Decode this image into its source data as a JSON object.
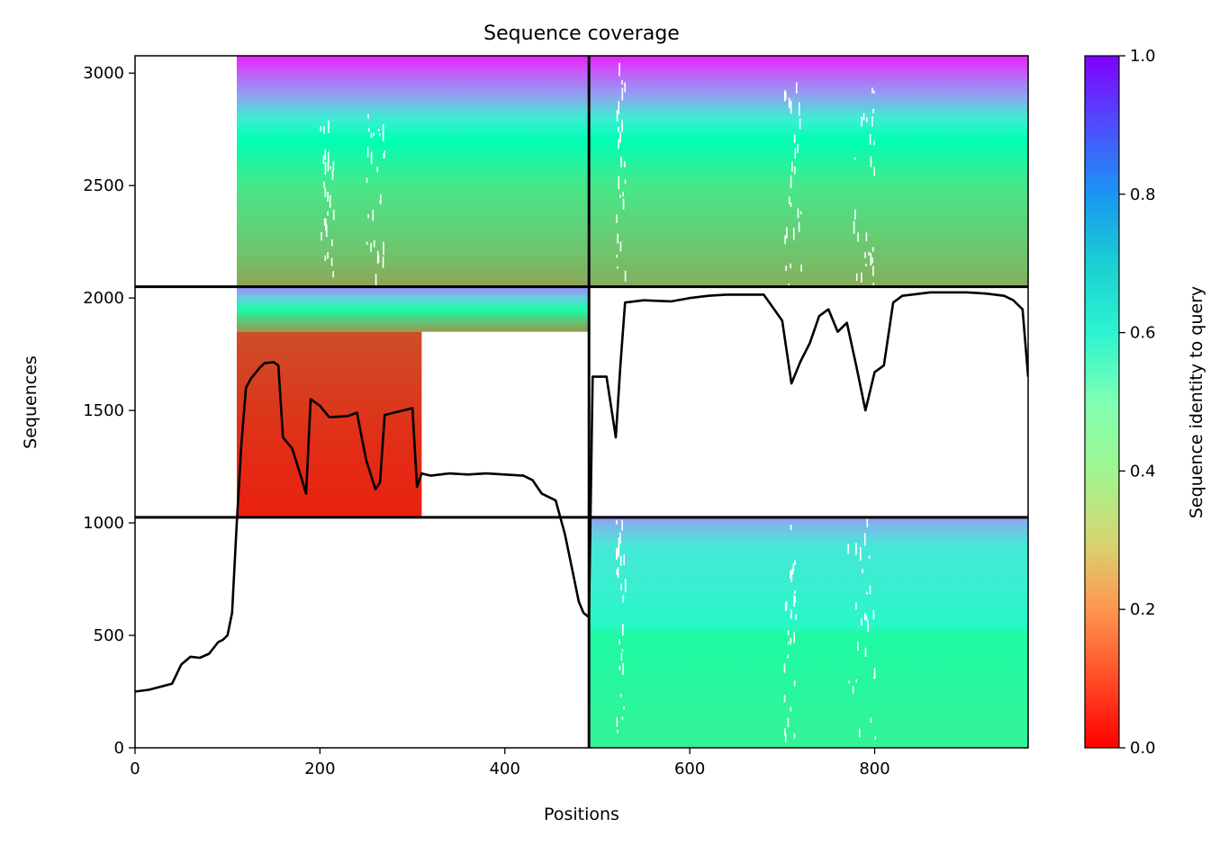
{
  "chart_data": {
    "type": "heatmap",
    "title": "Sequence coverage",
    "xlabel": "Positions",
    "ylabel": "Sequences",
    "xlim": [
      0,
      966
    ],
    "ylim": [
      0,
      3077
    ],
    "x_ticks": [
      "0",
      "200",
      "400",
      "600",
      "800"
    ],
    "x_tick_values": [
      0,
      200,
      400,
      600,
      800
    ],
    "y_ticks": [
      "0",
      "500",
      "1000",
      "1500",
      "2000",
      "2500",
      "3000"
    ],
    "y_tick_values": [
      0,
      500,
      1000,
      1500,
      2000,
      2500,
      3000
    ],
    "colorbar": {
      "label": "Sequence identity to query",
      "colormap": "rainbow_r",
      "range": [
        0.0,
        1.0
      ],
      "ticks": [
        "0.0",
        "0.2",
        "0.4",
        "0.6",
        "0.8",
        "1.0"
      ],
      "tick_values": [
        0.0,
        0.2,
        0.4,
        0.6,
        0.8,
        1.0
      ]
    },
    "chain_boundaries": {
      "position": 491,
      "sequences": [
        1025,
        2050
      ]
    },
    "blocks": [
      {
        "name": "upper-left",
        "x": [
          0,
          491
        ],
        "y": [
          2050,
          3077
        ],
        "col_start": 110,
        "identity_gradient": [
          [
            2050,
            0.22
          ],
          [
            2200,
            0.28
          ],
          [
            2500,
            0.36
          ],
          [
            2700,
            0.5
          ],
          [
            2800,
            0.62
          ],
          [
            2900,
            0.78
          ],
          [
            3000,
            0.88
          ],
          [
            3077,
            0.96
          ]
        ]
      },
      {
        "name": "upper-right",
        "x": [
          491,
          966
        ],
        "y": [
          2050,
          3077
        ],
        "col_start": 491,
        "identity_gradient": [
          [
            2050,
            0.24
          ],
          [
            2200,
            0.28
          ],
          [
            2500,
            0.36
          ],
          [
            2700,
            0.5
          ],
          [
            2800,
            0.62
          ],
          [
            2900,
            0.78
          ],
          [
            3000,
            0.88
          ],
          [
            3077,
            0.96
          ]
        ]
      },
      {
        "name": "middle-left-top",
        "x": [
          0,
          491
        ],
        "y": [
          1850,
          2050
        ],
        "col_start": 110,
        "identity_gradient": [
          [
            1850,
            0.2
          ],
          [
            1950,
            0.45
          ],
          [
            2000,
            0.7
          ],
          [
            2050,
            0.82
          ]
        ]
      },
      {
        "name": "middle-left-red",
        "x": [
          110,
          310
        ],
        "y": [
          1025,
          1850
        ],
        "identity_gradient": [
          [
            1025,
            0.04
          ],
          [
            1400,
            0.06
          ],
          [
            1850,
            0.1
          ]
        ]
      },
      {
        "name": "lower-right",
        "x": [
          491,
          966
        ],
        "y": [
          0,
          1025
        ],
        "col_start": 491,
        "identity_gradient": [
          [
            0,
            0.4
          ],
          [
            500,
            0.44
          ],
          [
            550,
            0.58
          ],
          [
            900,
            0.64
          ],
          [
            1000,
            0.75
          ],
          [
            1025,
            0.82
          ]
        ]
      }
    ],
    "coverage": [
      [
        0,
        250
      ],
      [
        15,
        258
      ],
      [
        40,
        285
      ],
      [
        50,
        370
      ],
      [
        60,
        405
      ],
      [
        70,
        400
      ],
      [
        80,
        418
      ],
      [
        90,
        470
      ],
      [
        95,
        480
      ],
      [
        100,
        500
      ],
      [
        105,
        600
      ],
      [
        110,
        1000
      ],
      [
        115,
        1350
      ],
      [
        120,
        1600
      ],
      [
        125,
        1640
      ],
      [
        135,
        1690
      ],
      [
        140,
        1710
      ],
      [
        150,
        1715
      ],
      [
        155,
        1700
      ],
      [
        160,
        1380
      ],
      [
        170,
        1330
      ],
      [
        180,
        1200
      ],
      [
        185,
        1130
      ],
      [
        190,
        1550
      ],
      [
        200,
        1520
      ],
      [
        210,
        1470
      ],
      [
        230,
        1475
      ],
      [
        240,
        1490
      ],
      [
        250,
        1280
      ],
      [
        260,
        1150
      ],
      [
        265,
        1180
      ],
      [
        270,
        1480
      ],
      [
        280,
        1490
      ],
      [
        290,
        1500
      ],
      [
        300,
        1510
      ],
      [
        305,
        1160
      ],
      [
        310,
        1220
      ],
      [
        320,
        1210
      ],
      [
        340,
        1220
      ],
      [
        360,
        1215
      ],
      [
        380,
        1220
      ],
      [
        400,
        1215
      ],
      [
        420,
        1210
      ],
      [
        430,
        1190
      ],
      [
        440,
        1130
      ],
      [
        455,
        1100
      ],
      [
        465,
        950
      ],
      [
        475,
        750
      ],
      [
        480,
        650
      ],
      [
        485,
        600
      ],
      [
        491,
        580
      ],
      [
        495,
        1650
      ],
      [
        500,
        1650
      ],
      [
        510,
        1650
      ],
      [
        520,
        1380
      ],
      [
        525,
        1700
      ],
      [
        530,
        1980
      ],
      [
        550,
        1990
      ],
      [
        580,
        1985
      ],
      [
        600,
        2000
      ],
      [
        620,
        2010
      ],
      [
        640,
        2015
      ],
      [
        680,
        2015
      ],
      [
        700,
        1900
      ],
      [
        710,
        1620
      ],
      [
        720,
        1720
      ],
      [
        730,
        1800
      ],
      [
        740,
        1920
      ],
      [
        750,
        1950
      ],
      [
        760,
        1850
      ],
      [
        770,
        1890
      ],
      [
        780,
        1700
      ],
      [
        790,
        1500
      ],
      [
        800,
        1670
      ],
      [
        810,
        1700
      ],
      [
        820,
        1980
      ],
      [
        830,
        2010
      ],
      [
        860,
        2025
      ],
      [
        900,
        2025
      ],
      [
        920,
        2020
      ],
      [
        940,
        2010
      ],
      [
        950,
        1990
      ],
      [
        960,
        1950
      ],
      [
        966,
        1650
      ]
    ]
  }
}
